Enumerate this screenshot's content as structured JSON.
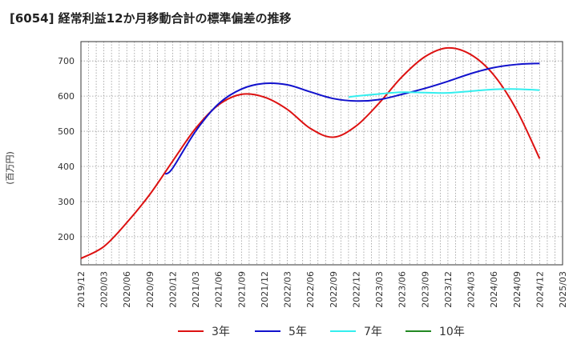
{
  "chart_data": {
    "type": "line",
    "title": "[6054]  経常利益12か月移動合計の標準偏差の推移",
    "ylabel": "(百万円)",
    "xlabel": "",
    "ylim": [
      120,
      755
    ],
    "yticks": [
      200,
      300,
      400,
      500,
      600,
      700
    ],
    "x_ticks": [
      "2019/12",
      "2020/03",
      "2020/06",
      "2020/09",
      "2020/12",
      "2021/03",
      "2021/06",
      "2021/09",
      "2021/12",
      "2022/03",
      "2022/06",
      "2022/09",
      "2022/12",
      "2023/03",
      "2023/06",
      "2023/09",
      "2023/12",
      "2024/03",
      "2024/06",
      "2024/09",
      "2024/12",
      "2025/03"
    ],
    "grid": true,
    "legend_position": "bottom",
    "series": [
      {
        "name": "3年",
        "color": "#dd1111",
        "points": [
          [
            "2019/12",
            138
          ],
          [
            "2020/03",
            172
          ],
          [
            "2020/06",
            240
          ],
          [
            "2020/09",
            320
          ],
          [
            "2020/12",
            415
          ],
          [
            "2021/03",
            508
          ],
          [
            "2021/06",
            575
          ],
          [
            "2021/09",
            605
          ],
          [
            "2021/12",
            597
          ],
          [
            "2022/03",
            562
          ],
          [
            "2022/06",
            508
          ],
          [
            "2022/09",
            483
          ],
          [
            "2022/12",
            515
          ],
          [
            "2023/03",
            580
          ],
          [
            "2023/06",
            655
          ],
          [
            "2023/09",
            712
          ],
          [
            "2023/12",
            737
          ],
          [
            "2024/03",
            718
          ],
          [
            "2024/06",
            660
          ],
          [
            "2024/09",
            560
          ],
          [
            "2024/12",
            422
          ]
        ]
      },
      {
        "name": "5年",
        "color": "#1111cc",
        "points": [
          [
            "2020/11",
            378
          ],
          [
            "2020/12",
            395
          ],
          [
            "2021/03",
            500
          ],
          [
            "2021/06",
            578
          ],
          [
            "2021/09",
            620
          ],
          [
            "2021/12",
            636
          ],
          [
            "2022/03",
            632
          ],
          [
            "2022/06",
            612
          ],
          [
            "2022/09",
            593
          ],
          [
            "2022/12",
            586
          ],
          [
            "2023/03",
            590
          ],
          [
            "2023/06",
            605
          ],
          [
            "2023/09",
            622
          ],
          [
            "2023/12",
            642
          ],
          [
            "2024/03",
            664
          ],
          [
            "2024/06",
            681
          ],
          [
            "2024/09",
            690
          ],
          [
            "2024/12",
            693
          ]
        ]
      },
      {
        "name": "7年",
        "color": "#33eeee",
        "points": [
          [
            "2022/11",
            597
          ],
          [
            "2022/12",
            600
          ],
          [
            "2023/03",
            606
          ],
          [
            "2023/06",
            611
          ],
          [
            "2023/09",
            610
          ],
          [
            "2023/12",
            609
          ],
          [
            "2024/03",
            614
          ],
          [
            "2024/06",
            619
          ],
          [
            "2024/09",
            620
          ],
          [
            "2024/12",
            617
          ]
        ]
      },
      {
        "name": "10年",
        "color": "#228822",
        "points": []
      }
    ]
  }
}
